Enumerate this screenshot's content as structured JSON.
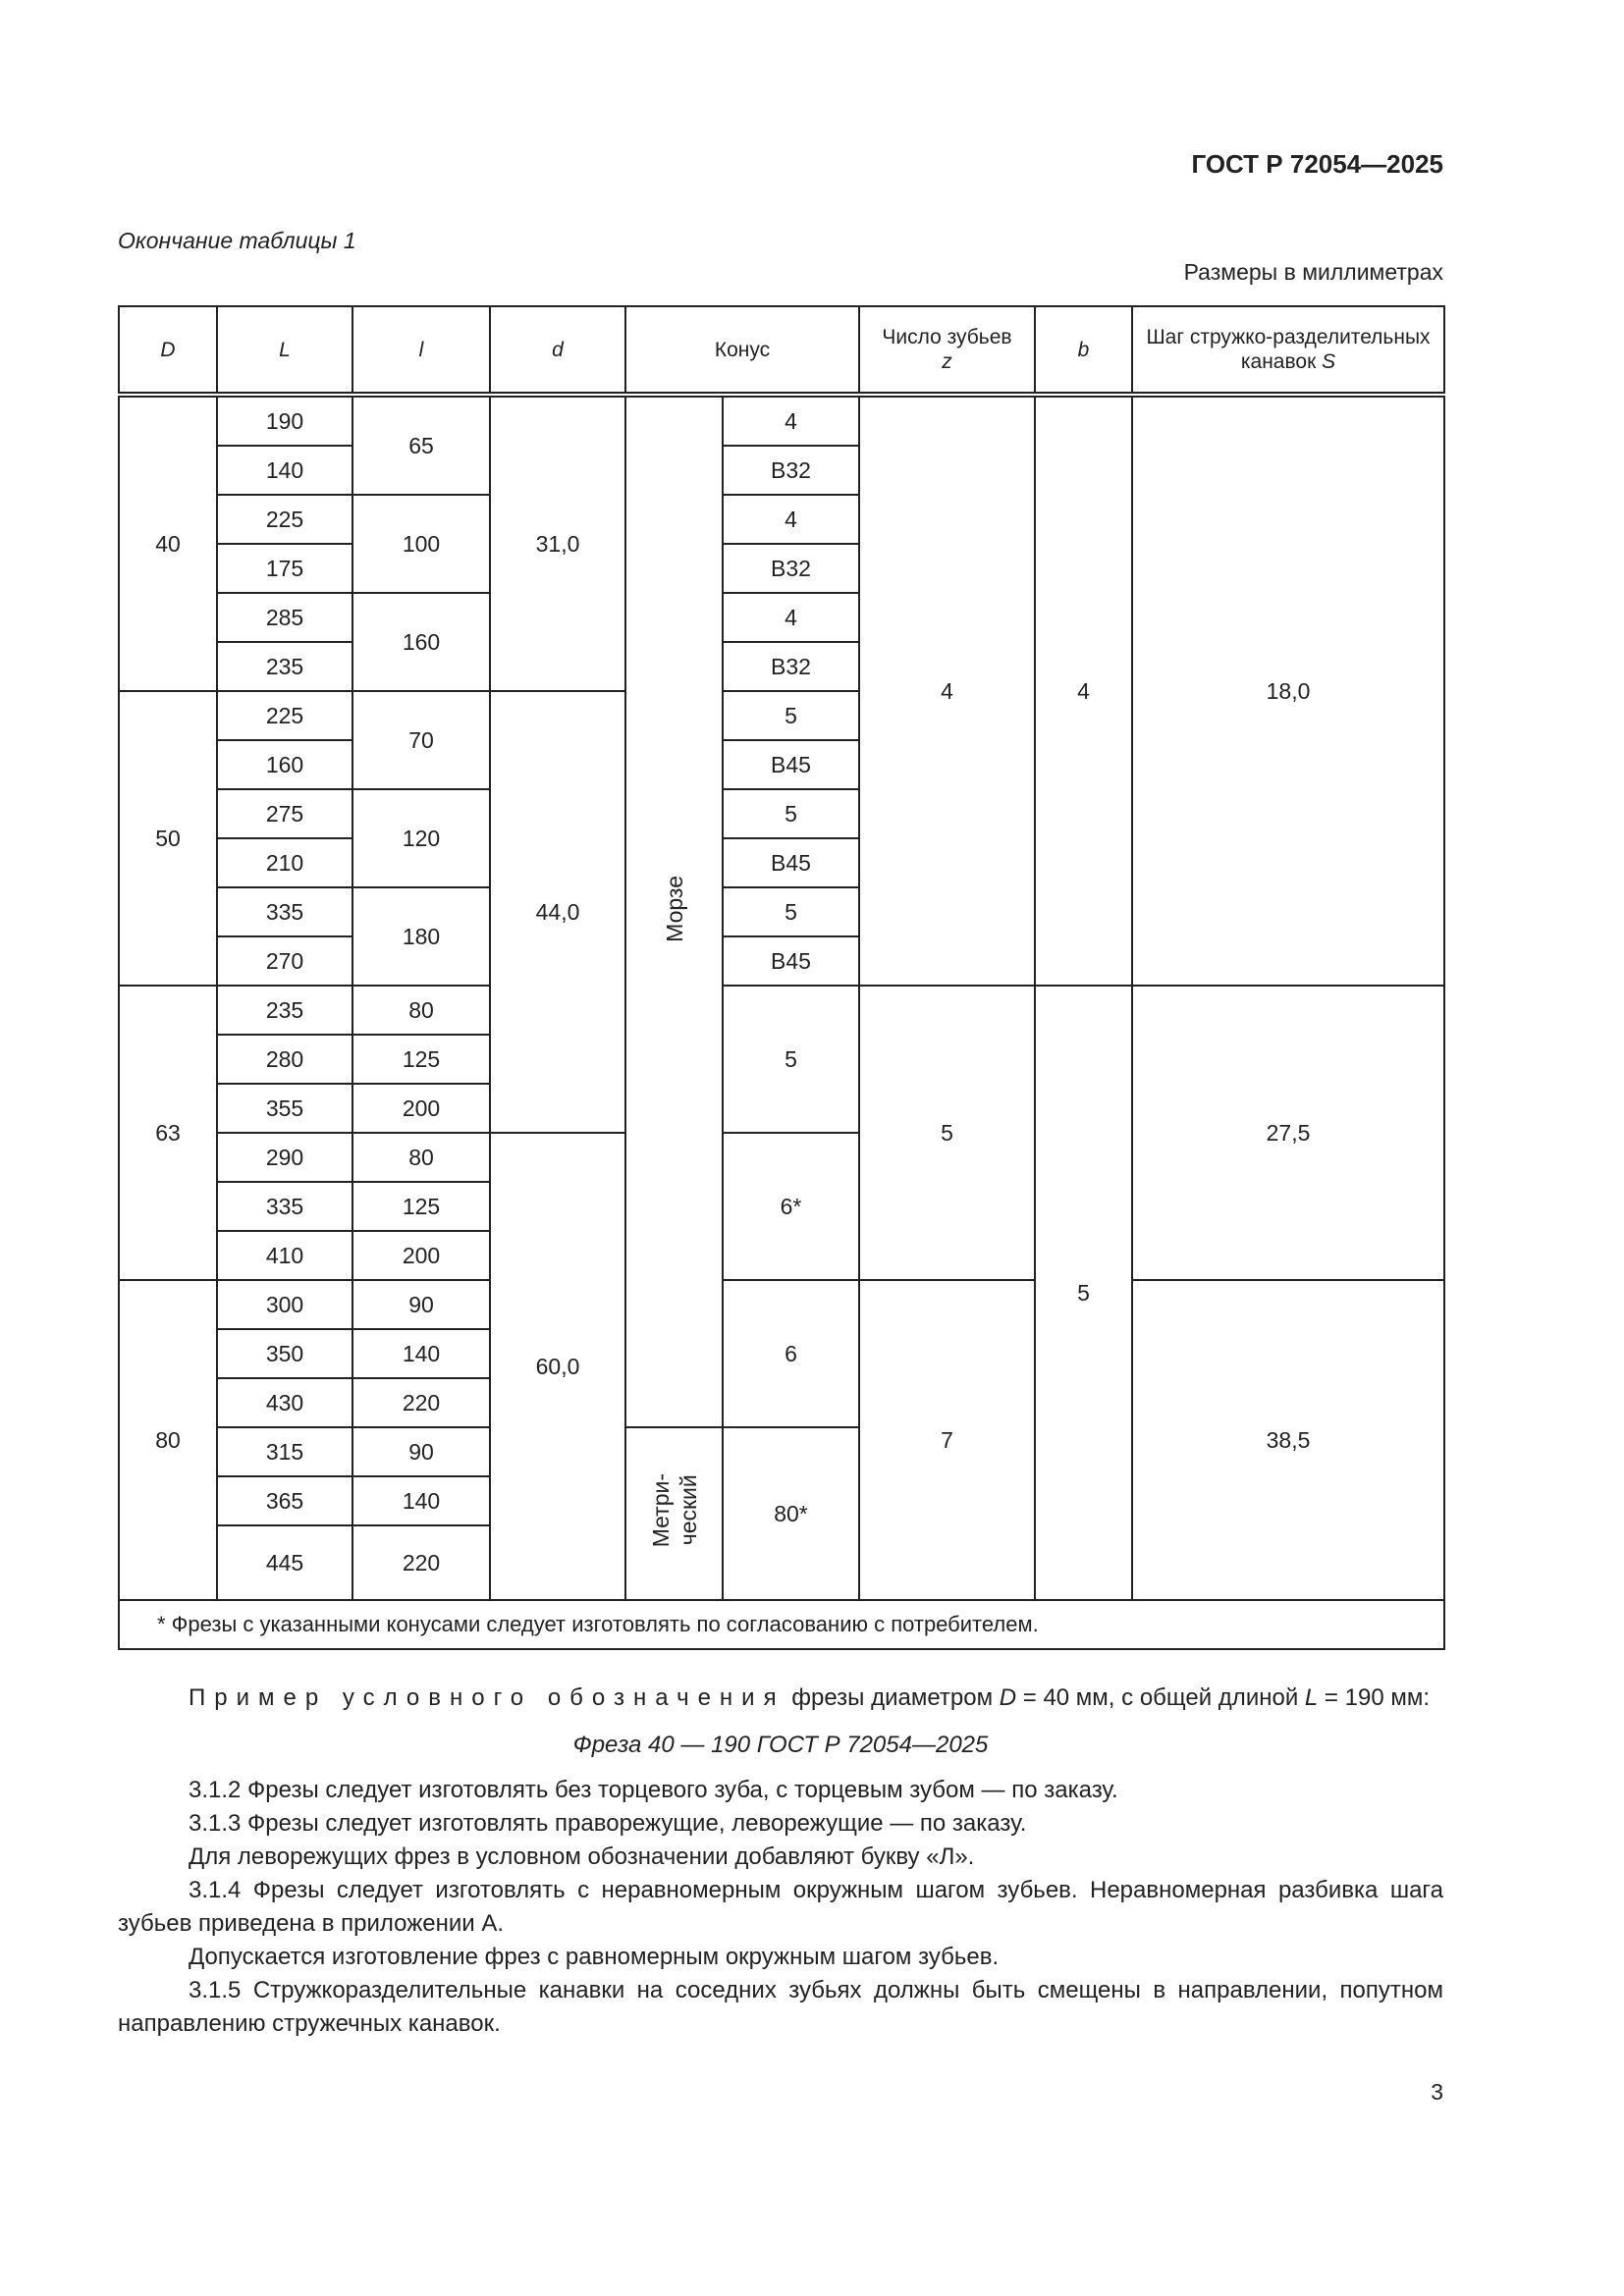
{
  "header": {
    "doc_code": "ГОСТ Р 72054—2025"
  },
  "table": {
    "continuation": "Окончание таблицы 1",
    "units": "Размеры в миллиметрах",
    "headers": {
      "D": "D",
      "L": "L",
      "l": "l",
      "d": "d",
      "cone": "Конус",
      "z_label": "Число зубьев",
      "z": "z",
      "b": "b",
      "s_label": "Шаг стружко-разделительных канавок",
      "s": "S"
    },
    "columns": [
      [
        {
          "v": "40",
          "span": 6
        },
        {
          "v": "50",
          "span": 6
        },
        {
          "v": "63",
          "span": 6
        },
        {
          "v": "80",
          "span": 6
        }
      ],
      [
        {
          "v": "190",
          "span": 1
        },
        {
          "v": "140",
          "span": 1
        },
        {
          "v": "225",
          "span": 1
        },
        {
          "v": "175",
          "span": 1
        },
        {
          "v": "285",
          "span": 1
        },
        {
          "v": "235",
          "span": 1
        },
        {
          "v": "225",
          "span": 1
        },
        {
          "v": "160",
          "span": 1
        },
        {
          "v": "275",
          "span": 1
        },
        {
          "v": "210",
          "span": 1
        },
        {
          "v": "335",
          "span": 1
        },
        {
          "v": "270",
          "span": 1
        },
        {
          "v": "235",
          "span": 1
        },
        {
          "v": "280",
          "span": 1
        },
        {
          "v": "355",
          "span": 1
        },
        {
          "v": "290",
          "span": 1
        },
        {
          "v": "335",
          "span": 1
        },
        {
          "v": "410",
          "span": 1
        },
        {
          "v": "300",
          "span": 1
        },
        {
          "v": "350",
          "span": 1
        },
        {
          "v": "430",
          "span": 1
        },
        {
          "v": "315",
          "span": 1
        },
        {
          "v": "365",
          "span": 1
        },
        {
          "v": "445",
          "span": 1
        }
      ],
      [
        {
          "v": "65",
          "span": 2
        },
        {
          "v": "100",
          "span": 2
        },
        {
          "v": "160",
          "span": 2
        },
        {
          "v": "70",
          "span": 2
        },
        {
          "v": "120",
          "span": 2
        },
        {
          "v": "180",
          "span": 2
        },
        {
          "v": "80",
          "span": 1
        },
        {
          "v": "125",
          "span": 1
        },
        {
          "v": "200",
          "span": 1
        },
        {
          "v": "80",
          "span": 1
        },
        {
          "v": "125",
          "span": 1
        },
        {
          "v": "200",
          "span": 1
        },
        {
          "v": "90",
          "span": 1
        },
        {
          "v": "140",
          "span": 1
        },
        {
          "v": "220",
          "span": 1
        },
        {
          "v": "90",
          "span": 1
        },
        {
          "v": "140",
          "span": 1
        },
        {
          "v": "220",
          "span": 1
        }
      ],
      [
        {
          "v": "31,0",
          "span": 6
        },
        {
          "v": "44,0",
          "span": 9
        },
        {
          "v": "60,0",
          "span": 9
        }
      ],
      [
        {
          "v": "Морзе",
          "span": 21,
          "vertical": true
        },
        {
          "v": "Метри-\nческий",
          "span": 3,
          "vertical": true
        }
      ],
      [
        {
          "v": "4",
          "span": 1
        },
        {
          "v": "В32",
          "span": 1
        },
        {
          "v": "4",
          "span": 1
        },
        {
          "v": "В32",
          "span": 1
        },
        {
          "v": "4",
          "span": 1
        },
        {
          "v": "В32",
          "span": 1
        },
        {
          "v": "5",
          "span": 1
        },
        {
          "v": "В45",
          "span": 1
        },
        {
          "v": "5",
          "span": 1
        },
        {
          "v": "В45",
          "span": 1
        },
        {
          "v": "5",
          "span": 1
        },
        {
          "v": "В45",
          "span": 1
        },
        {
          "v": "5",
          "span": 3
        },
        {
          "v": "6*",
          "span": 3
        },
        {
          "v": "6",
          "span": 3
        },
        {
          "v": "80*",
          "span": 3
        }
      ],
      [
        {
          "v": "4",
          "span": 12
        },
        {
          "v": "5",
          "span": 6
        },
        {
          "v": "7",
          "span": 6
        }
      ],
      [
        {
          "v": "4",
          "span": 12
        },
        {
          "v": "5",
          "span": 12
        }
      ],
      [
        {
          "v": "18,0",
          "span": 12
        },
        {
          "v": "27,5",
          "span": 6
        },
        {
          "v": "38,5",
          "span": 6
        }
      ]
    ],
    "footnote": "* Фрезы с указанными конусами следует изготовлять по согласованию с потребителем."
  },
  "text": {
    "example_spaced": "Пример условного обозначения",
    "example_rest1": " фрезы диаметром ",
    "example_D": "D",
    "example_rest2": " = 40 мм, с общей длиной ",
    "example_L": "L",
    "example_rest3": " = 190 мм:",
    "designation": "Фреза 40 — 190 ГОСТ Р 72054—2025",
    "p312": "3.1.2  Фрезы следует изготовлять без торцевого зуба, с торцевым зубом — по заказу.",
    "p313": "3.1.3  Фрезы следует изготовлять праворежущие, леворежущие — по заказу.",
    "p313b": "Для леворежущих фрез в условном обозначении добавляют букву «Л».",
    "p314": "3.1.4  Фрезы следует изготовлять с неравномерным окружным шагом зубьев. Неравномерная разбивка шага зубьев приведена в приложении А.",
    "p314b": "Допускается изготовление фрез с равномерным окружным шагом зубьев.",
    "p315": "3.1.5  Стружкоразделительные канавки на соседних зубьях должны быть смещены в направлении, попутном направлению стружечных канавок."
  },
  "page_number": "3"
}
